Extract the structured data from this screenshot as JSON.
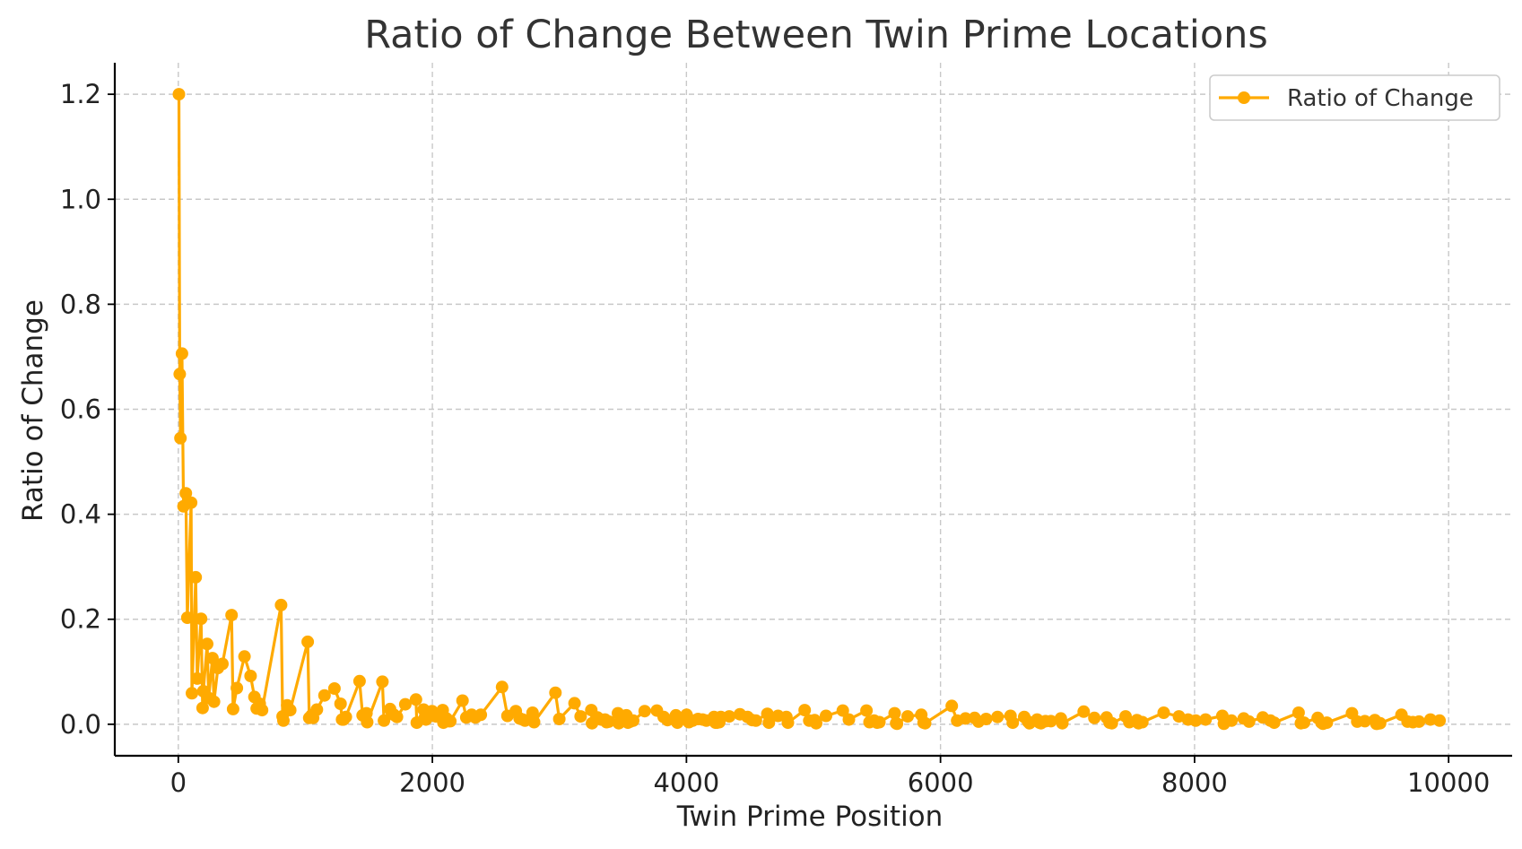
{
  "chart_data": {
    "type": "line",
    "title": "Ratio of Change Between Twin Prime Locations",
    "xlabel": "Twin Prime Position",
    "ylabel": "Ratio of Change",
    "xlim": [
      -500,
      10500
    ],
    "ylim": [
      -0.06,
      1.26
    ],
    "xticks": [
      0,
      2000,
      4000,
      6000,
      8000,
      10000
    ],
    "xtick_labels": [
      "0",
      "2000",
      "4000",
      "6000",
      "8000",
      "10000"
    ],
    "yticks": [
      0.0,
      0.2,
      0.4,
      0.6,
      0.8,
      1.0,
      1.2
    ],
    "ytick_labels": [
      "0.0",
      "0.2",
      "0.4",
      "0.6",
      "0.8",
      "1.0",
      "1.2"
    ],
    "grid": true,
    "legend_position": "top-right",
    "series": [
      {
        "name": "Ratio of Change",
        "color": "#FFAA00",
        "marker": "circle",
        "x": [
          5,
          11,
          17,
          29,
          41,
          59,
          71,
          101,
          107,
          137,
          149,
          179,
          191,
          197,
          227,
          239,
          269,
          281,
          311,
          347,
          419,
          431,
          461,
          521,
          569,
          599,
          617,
          641,
          659,
          809,
          821,
          827,
          857,
          881,
          1019,
          1031,
          1049,
          1061,
          1091,
          1151,
          1229,
          1277,
          1289,
          1301,
          1319,
          1427,
          1451,
          1481,
          1487,
          1607,
          1619,
          1667,
          1697,
          1721,
          1787,
          1871,
          1877,
          1931,
          1949,
          1997,
          2027,
          2081,
          2087,
          2111,
          2129,
          2141,
          2237,
          2267,
          2309,
          2339,
          2381,
          2549,
          2591,
          2657,
          2687,
          2711,
          2729,
          2789,
          2801,
          2969,
          2999,
          3119,
          3167,
          3251,
          3257,
          3299,
          3329,
          3359,
          3371,
          3389,
          3461,
          3467,
          3527,
          3539,
          3557,
          3581,
          3671,
          3767,
          3821,
          3851,
          3917,
          3929,
          4001,
          4019,
          4049,
          4091,
          4127,
          4157,
          4217,
          4229,
          4241,
          4259,
          4271,
          4337,
          4421,
          4481,
          4517,
          4547,
          4637,
          4649,
          4721,
          4787,
          4799,
          4931,
          4967,
          5009,
          5021,
          5099,
          5231,
          5279,
          5417,
          5441,
          5477,
          5501,
          5519,
          5639,
          5651,
          5657,
          5741,
          5849,
          5867,
          5879,
          6089,
          6131,
          6197,
          6269,
          6299,
          6359,
          6449,
          6551,
          6569,
          6659,
          6689,
          6701,
          6761,
          6779,
          6791,
          6827,
          6869,
          6947,
          6959,
          7127,
          7211,
          7307,
          7331,
          7349,
          7457,
          7487,
          7547,
          7559,
          7589,
          7757,
          7877,
          7949,
          8009,
          8087,
          8219,
          8231,
          8291,
          8387,
          8429,
          8537,
          8597,
          8627,
          8819,
          8837,
          8861,
          8969,
          8999,
          9011,
          9041,
          9239,
          9281,
          9341,
          9419,
          9431,
          9437,
          9461,
          9629,
          9677,
          9719,
          9767,
          9857,
          9929
        ],
        "y": [
          1.2,
          0.667,
          0.545,
          0.706,
          0.415,
          0.44,
          0.203,
          0.422,
          0.059,
          0.28,
          0.087,
          0.201,
          0.031,
          0.063,
          0.153,
          0.05,
          0.126,
          0.043,
          0.107,
          0.115,
          0.208,
          0.029,
          0.069,
          0.129,
          0.092,
          0.052,
          0.03,
          0.039,
          0.027,
          0.227,
          0.015,
          0.007,
          0.036,
          0.027,
          0.157,
          0.012,
          0.017,
          0.012,
          0.028,
          0.055,
          0.068,
          0.039,
          0.009,
          0.009,
          0.014,
          0.082,
          0.017,
          0.021,
          0.004,
          0.081,
          0.007,
          0.029,
          0.018,
          0.014,
          0.038,
          0.047,
          0.003,
          0.028,
          0.009,
          0.025,
          0.015,
          0.027,
          0.003,
          0.011,
          0.006,
          0.006,
          0.045,
          0.013,
          0.018,
          0.013,
          0.018,
          0.071,
          0.016,
          0.025,
          0.011,
          0.009,
          0.007,
          0.022,
          0.004,
          0.06,
          0.01,
          0.04,
          0.015,
          0.027,
          0.002,
          0.013,
          0.009,
          0.009,
          0.004,
          0.005,
          0.021,
          0.002,
          0.017,
          0.003,
          0.005,
          0.007,
          0.025,
          0.026,
          0.014,
          0.008,
          0.017,
          0.003,
          0.018,
          0.004,
          0.007,
          0.01,
          0.009,
          0.007,
          0.014,
          0.003,
          0.003,
          0.004,
          0.014,
          0.015,
          0.019,
          0.014,
          0.008,
          0.007,
          0.02,
          0.003,
          0.016,
          0.014,
          0.003,
          0.027,
          0.007,
          0.008,
          0.002,
          0.016,
          0.026,
          0.009,
          0.026,
          0.004,
          0.007,
          0.003,
          0.004,
          0.021,
          0.002,
          0.001,
          0.015,
          0.018,
          0.003,
          0.002,
          0.035,
          0.007,
          0.011,
          0.012,
          0.005,
          0.01,
          0.014,
          0.016,
          0.003,
          0.014,
          0.005,
          0.002,
          0.009,
          0.003,
          0.002,
          0.006,
          0.006,
          0.011,
          0.002,
          0.024,
          0.012,
          0.013,
          0.003,
          0.002,
          0.015,
          0.004,
          0.008,
          0.002,
          0.004,
          0.022,
          0.015,
          0.009,
          0.007,
          0.009,
          0.016,
          0.001,
          0.007,
          0.011,
          0.005,
          0.013,
          0.007,
          0.003,
          0.022,
          0.002,
          0.003,
          0.012,
          0.003,
          0.001,
          0.003,
          0.021,
          0.005,
          0.006,
          0.008,
          0.001,
          0.001,
          0.002,
          0.018,
          0.005,
          0.004,
          0.005,
          0.009,
          0.007
        ]
      }
    ]
  }
}
